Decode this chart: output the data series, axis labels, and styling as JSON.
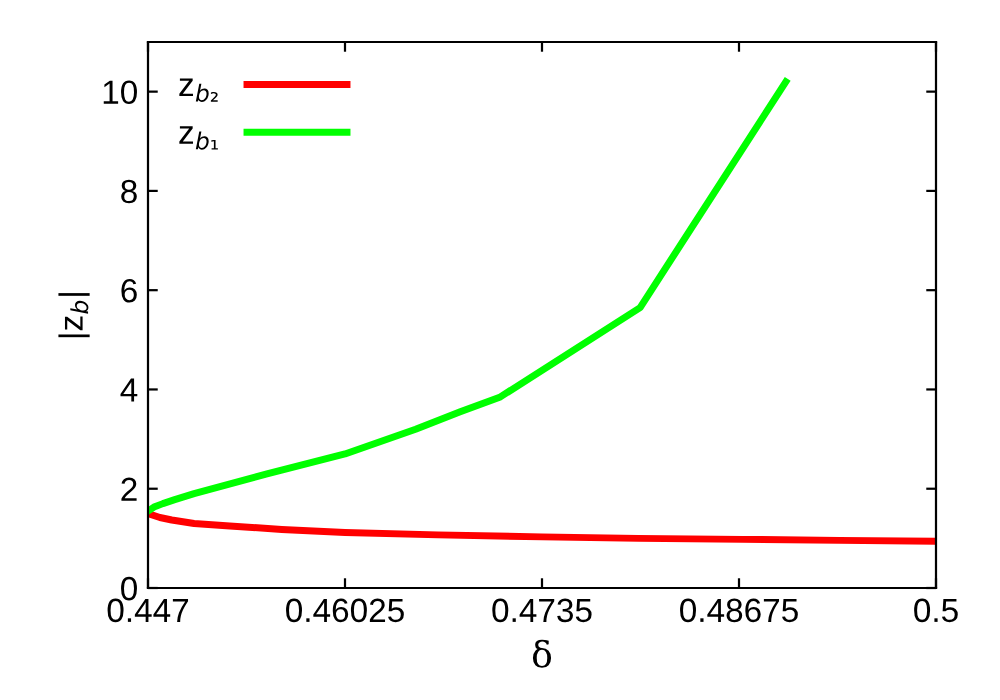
{
  "chart_data": {
    "type": "line",
    "xlabel": "δ",
    "ylabel": "|z$_{b}$|",
    "xlim": [
      0.447,
      0.5
    ],
    "xticks": [
      0.447,
      0.46025,
      0.4735,
      0.48675,
      0.5
    ],
    "ylim": [
      0,
      11
    ],
    "yticks": [
      0,
      2,
      4,
      6,
      8,
      10
    ],
    "grid": false,
    "legend": "top left",
    "marker": "none",
    "line_style": "solid",
    "series": [
      {
        "name": "z$_{b₂}$",
        "color": "#ff0000",
        "x": [
          0.447,
          0.4478,
          0.4486,
          0.4501,
          0.4525,
          0.456,
          0.46025,
          0.4665,
          0.4735,
          0.48,
          0.487,
          0.4935,
          0.5
        ],
        "values": [
          1.5,
          1.42,
          1.37,
          1.3,
          1.25,
          1.18,
          1.12,
          1.07,
          1.03,
          1.0,
          0.98,
          0.96,
          0.94
        ]
      },
      {
        "name": "z$_{b₁}$",
        "color": "#00ff00",
        "x": [
          0.447,
          0.4474,
          0.448,
          0.4488,
          0.4501,
          0.455,
          0.46025,
          0.465,
          0.468,
          0.4707,
          0.4801,
          0.4899
        ],
        "values": [
          1.55,
          1.63,
          1.7,
          1.78,
          1.9,
          2.3,
          2.7,
          3.2,
          3.55,
          3.85,
          5.65,
          10.2
        ]
      }
    ]
  }
}
